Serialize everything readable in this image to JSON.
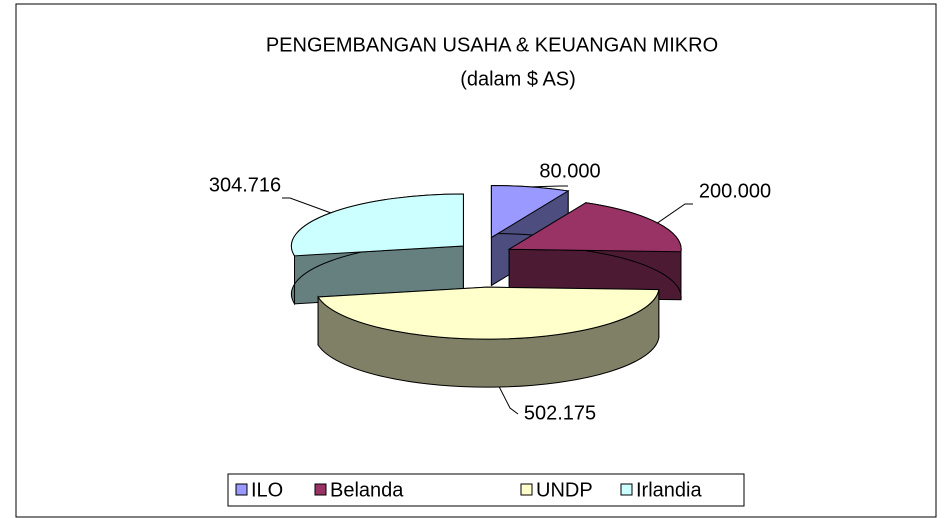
{
  "chart_data": {
    "type": "pie3d",
    "title": "PENGEMBANGAN USAHA & KEUANGAN MIKRO",
    "subtitle": "(dalam $ AS)",
    "categories": [
      "ILO",
      "Belanda",
      "UNDP",
      "Irlandia"
    ],
    "values": [
      80000,
      200000,
      502175,
      304716
    ],
    "value_labels": [
      "80.000",
      "200.000",
      "502.175",
      "304.716"
    ],
    "colors": [
      "#9999ff",
      "#993366",
      "#ffffcc",
      "#ccffff"
    ],
    "legend": "bottom"
  }
}
